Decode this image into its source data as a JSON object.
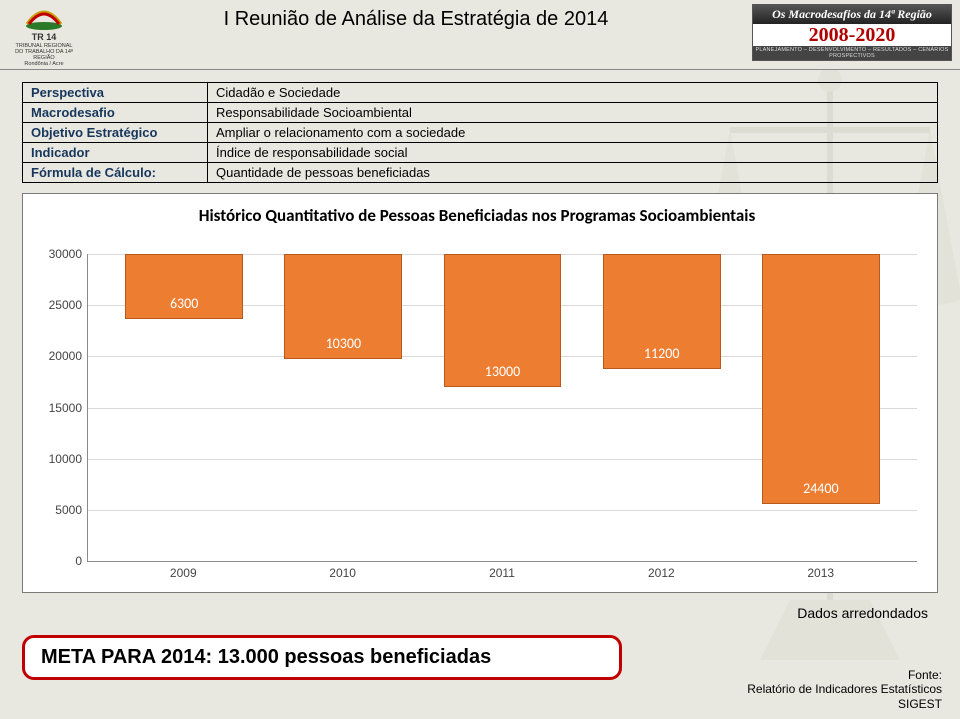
{
  "header": {
    "logo": {
      "abbrev": "TR 14",
      "line1": "TRIBUNAL REGIONAL",
      "line2": "DO TRABALHO DA 14ª REGIÃO",
      "line3": "Rondônia / Acre"
    },
    "title": "I Reunião de Análise da Estratégia de 2014",
    "badge": {
      "top": "Os Macrodesafios da 14ª Região",
      "mid": "2008-2020",
      "bot": "PLANEJAMENTO – DESENVOLVIMENTO – RESULTADOS – CENÁRIOS PROSPECTIVOS"
    }
  },
  "info_table": [
    {
      "k": "Perspectiva",
      "v": "Cidadão e Sociedade"
    },
    {
      "k": "Macrodesafio",
      "v": "Responsabilidade Socioambiental"
    },
    {
      "k": "Objetivo Estratégico",
      "v": "Ampliar o relacionamento com a sociedade"
    },
    {
      "k": "Indicador",
      "v": "Índice de responsabilidade social"
    },
    {
      "k": "Fórmula de Cálculo:",
      "v": "Quantidade de pessoas beneficiadas"
    }
  ],
  "chart": {
    "type": "bar",
    "title": "Histórico Quantitativo de Pessoas Beneficiadas nos Programas Socioambientais",
    "title_fontsize": 17,
    "background_color": "#ffffff",
    "border_color": "#7a7a7a",
    "grid_color": "#d9d9d9",
    "axis_color": "#8a8a8a",
    "bar_color": "#ed7d31",
    "bar_border_color": "#b85a1f",
    "label_color_inside": "#ffffff",
    "label_color_outside": "#000000",
    "bar_width": 0.74,
    "label_fontsize": 14,
    "tick_fontsize": 12,
    "ylim": [
      0,
      30000
    ],
    "ytick_step": 5000,
    "yticks": [
      0,
      5000,
      10000,
      15000,
      20000,
      25000,
      30000
    ],
    "categories": [
      "2009",
      "2010",
      "2011",
      "2012",
      "2013"
    ],
    "values": [
      6300,
      10300,
      13000,
      11200,
      24400
    ],
    "value_labels": [
      "6300",
      "10300",
      "13000",
      "11200",
      "24400"
    ]
  },
  "note": "Dados arredondados",
  "meta_box": "META PARA 2014: 13.000 pessoas beneficiadas",
  "source": {
    "l1": "Fonte:",
    "l2": "Relatório  de Indicadores Estatísticos",
    "l3": "SIGEST"
  },
  "colors": {
    "page_bg": "#e8e8e0",
    "info_key": "#17365d",
    "meta_border": "#c00000",
    "badge_years": "#b00000"
  }
}
